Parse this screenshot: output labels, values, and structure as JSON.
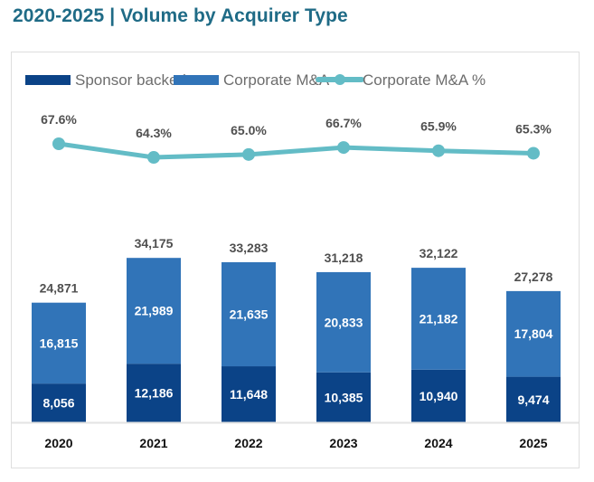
{
  "title": "2020-2025 | Volume by Acquirer Type",
  "colors": {
    "title": "#1f6b86",
    "sponsor_backed": "#0b4387",
    "corporate_ma": "#3174b8",
    "corporate_ma_pct": "#63bcc6",
    "baseline": "#e3e3e3"
  },
  "chart_data": {
    "type": "bar",
    "stacked": true,
    "title": "2020-2025 | Volume by Acquirer Type",
    "xlabel": "",
    "ylabel": "",
    "categories": [
      "2020",
      "2021",
      "2022",
      "2023",
      "2024",
      "2025"
    ],
    "series": [
      {
        "name": "Sponsor backed",
        "type": "bar",
        "values": [
          8056,
          12186,
          11648,
          10385,
          10940,
          9474
        ],
        "labels": [
          "8,056",
          "12,186",
          "11,648",
          "10,385",
          "10,940",
          "9,474"
        ]
      },
      {
        "name": "Corporate M&A",
        "type": "bar",
        "values": [
          16815,
          21989,
          21635,
          20833,
          21182,
          17804
        ],
        "labels": [
          "16,815",
          "21,989",
          "21,635",
          "20,833",
          "21,182",
          "17,804"
        ]
      },
      {
        "name": "Corporate M&A %",
        "type": "line",
        "values": [
          67.6,
          64.3,
          65.0,
          66.7,
          65.9,
          65.3
        ],
        "labels": [
          "67.6%",
          "64.3%",
          "65.0%",
          "66.7%",
          "65.9%",
          "65.3%"
        ]
      }
    ],
    "totals": [
      24871,
      34175,
      33283,
      31218,
      32122,
      27278
    ],
    "total_labels": [
      "24,871",
      "34,175",
      "33,283",
      "31,218",
      "32,122",
      "27,278"
    ],
    "legend": [
      "Sponsor backed",
      "Corporate M&A",
      "Corporate M&A %"
    ],
    "legend_position": "top",
    "grid": false,
    "y_axis_visible": false
  }
}
